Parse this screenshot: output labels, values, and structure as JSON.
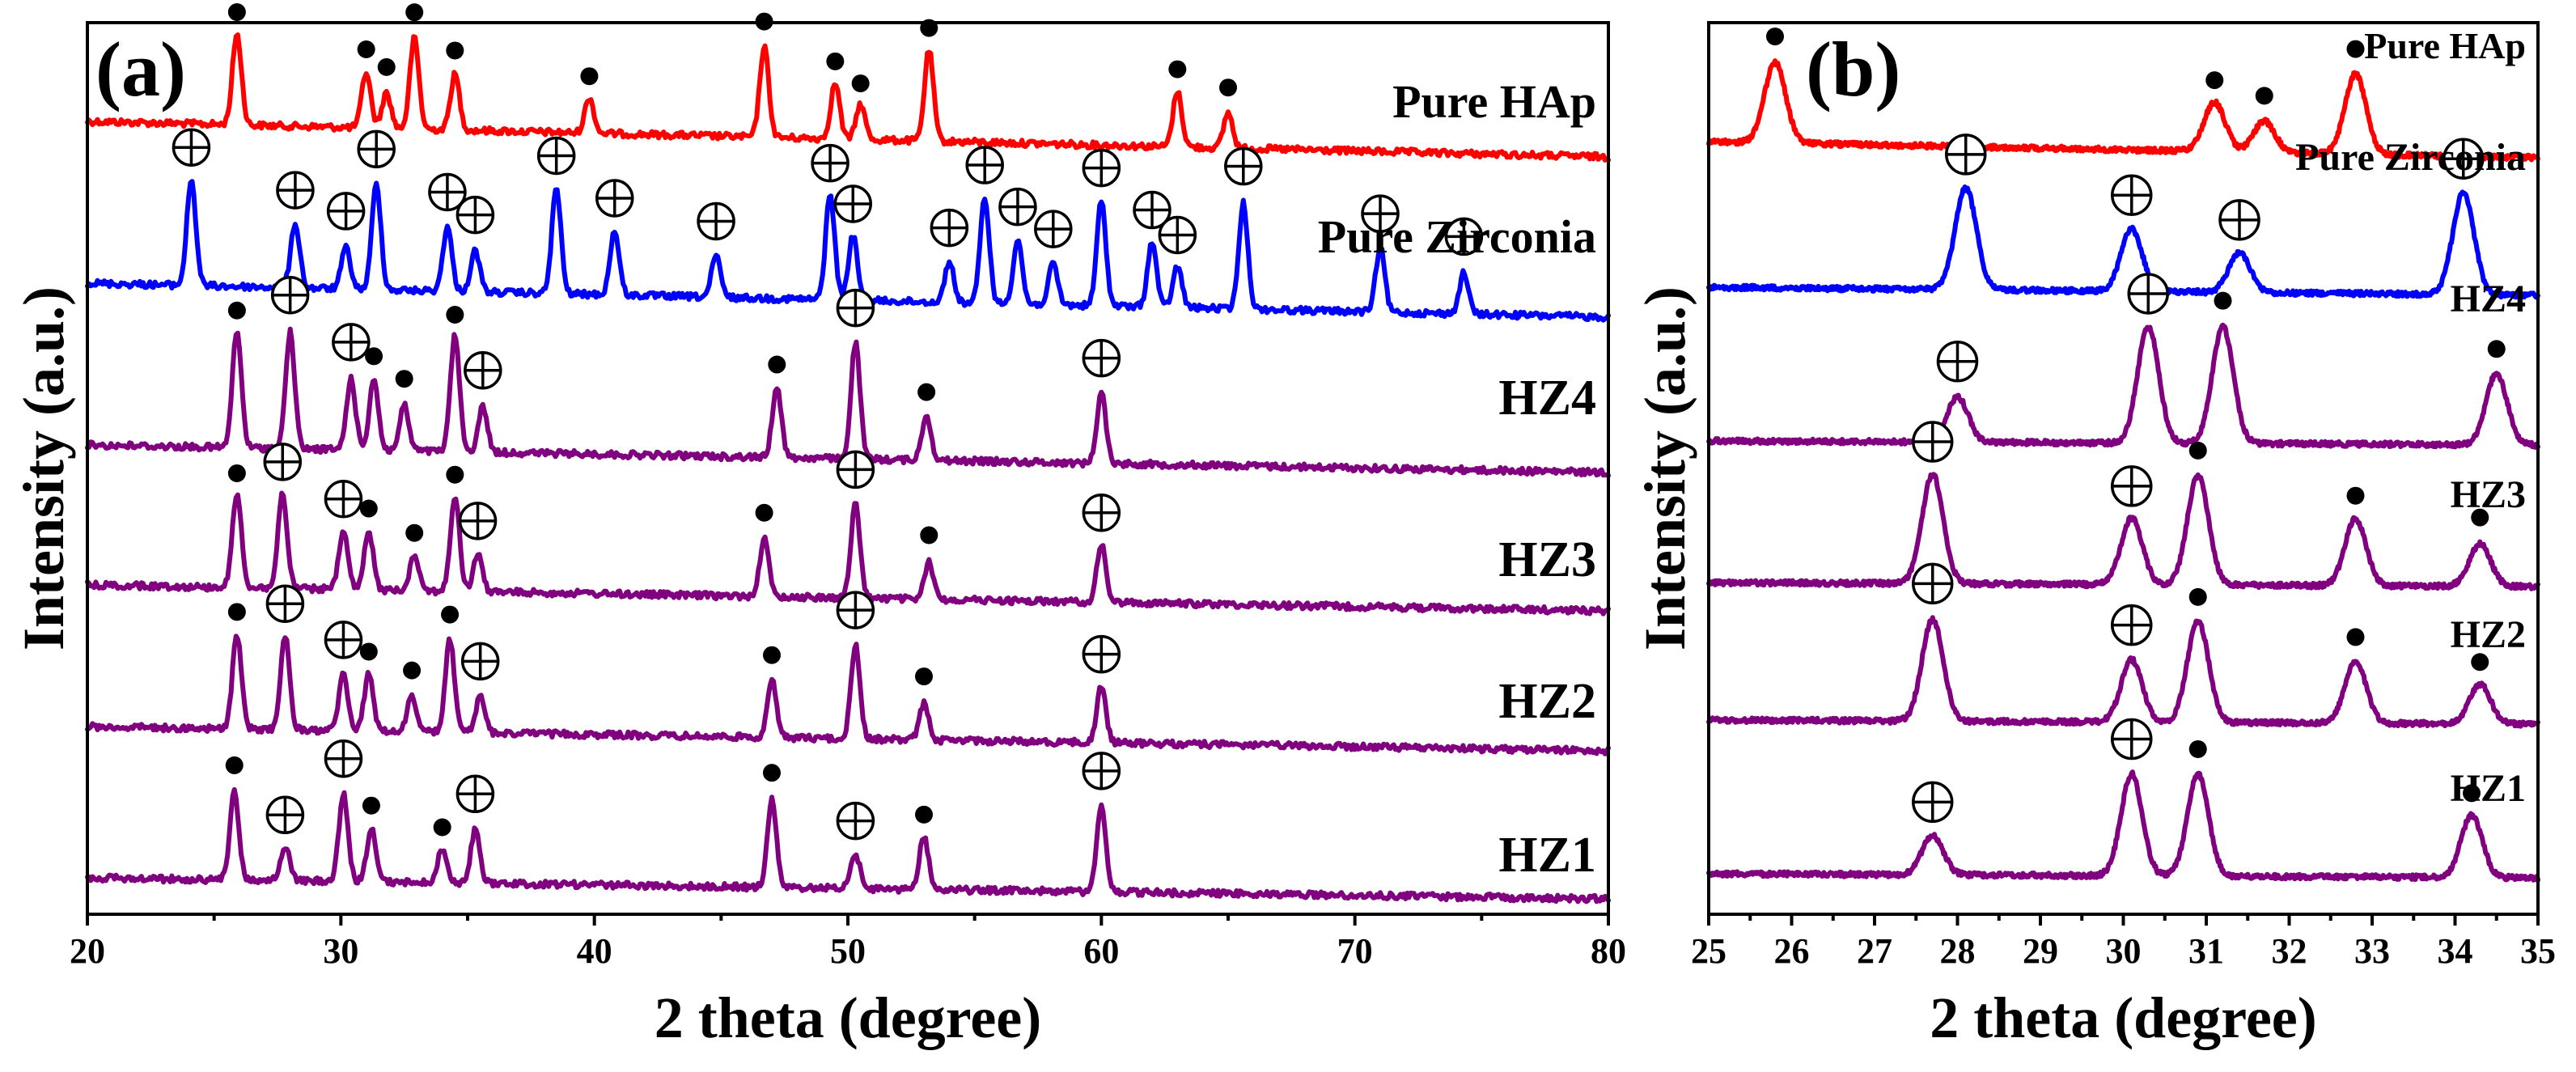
{
  "chart_data": [
    {
      "type": "line",
      "panel_label": "(a)",
      "xlabel": "2 theta (degree)",
      "ylabel": "Intensity (a.u.)",
      "xlim": [
        20,
        80
      ],
      "x_ticks": [
        "20",
        "30",
        "40",
        "50",
        "60",
        "70",
        "80"
      ],
      "series": [
        {
          "name": "Pure HAp",
          "color": "#ff0000",
          "hap_peaks": [
            25.9,
            31.0,
            31.8,
            32.9,
            34.5,
            39.8,
            46.7,
            49.5,
            50.5,
            53.2,
            63.0,
            65.0
          ],
          "zirconia_peaks": []
        },
        {
          "name": "Pure Zirconia",
          "color": "#0000ff",
          "hap_peaks": [],
          "zirconia_peaks": [
            24.1,
            28.2,
            30.2,
            31.4,
            34.2,
            35.3,
            38.5,
            40.8,
            44.8,
            49.3,
            50.2,
            54.0,
            55.4,
            56.7,
            58.1,
            60.0,
            62.0,
            63.0,
            65.6,
            71.0,
            74.3
          ]
        },
        {
          "name": "HZ4",
          "color": "#800080",
          "hap_peaks": [
            25.9,
            31.3,
            32.5,
            34.5,
            47.2,
            53.1
          ],
          "zirconia_peaks": [
            28.0,
            30.4,
            35.6,
            50.3,
            60.0
          ]
        },
        {
          "name": "HZ3",
          "color": "#800080",
          "hap_peaks": [
            25.9,
            31.1,
            32.9,
            34.5,
            46.7,
            53.2
          ],
          "zirconia_peaks": [
            27.7,
            30.1,
            35.4,
            50.3,
            60.0
          ]
        },
        {
          "name": "HZ2",
          "color": "#800080",
          "hap_peaks": [
            25.9,
            31.1,
            32.8,
            34.3,
            47.0,
            53.0
          ],
          "zirconia_peaks": [
            27.8,
            30.1,
            35.5,
            50.3,
            60.0
          ]
        },
        {
          "name": "HZ1",
          "color": "#800080",
          "hap_peaks": [
            25.8,
            31.2,
            34.0,
            47.0,
            53.0
          ],
          "zirconia_peaks": [
            27.8,
            30.1,
            35.3,
            50.3,
            60.0
          ]
        }
      ]
    },
    {
      "type": "line",
      "panel_label": "(b)",
      "xlabel": "2 theta (degree)",
      "ylabel": "Intensity (a.u.)",
      "xlim": [
        25,
        35
      ],
      "x_ticks": [
        "25",
        "26",
        "27",
        "28",
        "29",
        "30",
        "31",
        "32",
        "33",
        "34",
        "35"
      ],
      "series": [
        {
          "name": "Pure HAp",
          "color": "#ff0000",
          "hap_peaks": [
            25.8,
            31.1,
            31.7,
            32.8
          ],
          "zirconia_peaks": []
        },
        {
          "name": "Pure Zirconia",
          "color": "#0000ff",
          "hap_peaks": [],
          "zirconia_peaks": [
            28.1,
            30.1,
            31.4,
            34.1
          ]
        },
        {
          "name": "HZ4",
          "color": "#800080",
          "hap_peaks": [
            31.2,
            34.5
          ],
          "zirconia_peaks": [
            28.0,
            30.3
          ]
        },
        {
          "name": "HZ3",
          "color": "#800080",
          "hap_peaks": [
            30.9,
            32.8,
            34.3
          ],
          "zirconia_peaks": [
            27.7,
            30.1
          ]
        },
        {
          "name": "HZ2",
          "color": "#800080",
          "hap_peaks": [
            30.9,
            32.8,
            34.3
          ],
          "zirconia_peaks": [
            27.7,
            30.1
          ]
        },
        {
          "name": "HZ1",
          "color": "#800080",
          "hap_peaks": [
            30.9,
            34.2
          ],
          "zirconia_peaks": [
            27.7,
            30.1
          ]
        }
      ]
    }
  ]
}
